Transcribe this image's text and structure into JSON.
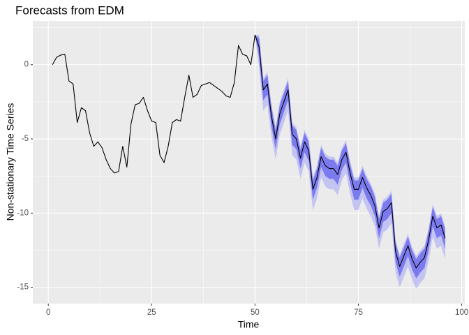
{
  "chart_data": {
    "type": "line",
    "title": "Forecasts from EDM",
    "xlabel": "Time",
    "ylabel": "Non-stationary Time Series",
    "x": [
      1,
      2,
      3,
      4,
      5,
      6,
      7,
      8,
      9,
      10,
      11,
      12,
      13,
      14,
      15,
      16,
      17,
      18,
      19,
      20,
      21,
      22,
      23,
      24,
      25,
      26,
      27,
      28,
      29,
      30,
      31,
      32,
      33,
      34,
      35,
      36,
      37,
      38,
      39,
      40,
      41,
      42,
      43,
      44,
      45,
      46,
      47,
      48,
      49,
      50,
      51,
      52,
      53,
      54,
      55,
      56,
      57,
      58,
      59,
      60,
      61,
      62,
      63,
      64,
      65,
      66,
      67,
      68,
      69,
      70,
      71,
      72,
      73,
      74,
      75,
      76,
      77,
      78,
      79,
      80,
      81,
      82,
      83,
      84,
      85,
      86,
      87,
      88,
      89,
      90,
      91,
      92,
      93,
      94,
      95,
      96
    ],
    "values": [
      0,
      0.5,
      0.65,
      0.7,
      -1.1,
      -1.3,
      -3.9,
      -2.9,
      -3.1,
      -4.6,
      -5.5,
      -5.2,
      -5.6,
      -6.4,
      -7.0,
      -7.3,
      -7.2,
      -5.5,
      -6.9,
      -4.0,
      -2.7,
      -2.6,
      -2.2,
      -3.1,
      -3.8,
      -3.9,
      -6.1,
      -6.6,
      -5.5,
      -3.9,
      -3.7,
      -3.8,
      -2.2,
      -0.7,
      -2.2,
      -2.0,
      -1.4,
      -1.3,
      -1.2,
      -1.4,
      -1.6,
      -1.8,
      -2.1,
      -2.2,
      -1.2,
      1.3,
      0.7,
      0.6,
      0.0,
      2.0,
      1.2,
      -1.7,
      -1.3,
      -3.5,
      -5.0,
      -3.3,
      -2.5,
      -1.7,
      -4.7,
      -5.0,
      -6.3,
      -5.2,
      -5.8,
      -8.4,
      -7.6,
      -6.2,
      -6.8,
      -7.0,
      -7.0,
      -7.4,
      -6.4,
      -5.9,
      -7.3,
      -8.4,
      -8.4,
      -7.6,
      -8.3,
      -8.8,
      -9.5,
      -11.0,
      -9.9,
      -9.7,
      -9.3,
      -12.6,
      -13.6,
      -12.9,
      -12.2,
      -13.1,
      -13.7,
      -13.3,
      -13.0,
      -11.8,
      -10.2,
      -11.0,
      -10.8,
      -11.7
    ],
    "color": "#000000",
    "interval_x": [
      50,
      51,
      52,
      53,
      54,
      55,
      56,
      57,
      58,
      59,
      60,
      61,
      62,
      63,
      64,
      65,
      66,
      67,
      68,
      69,
      70,
      71,
      72,
      73,
      74,
      75,
      76,
      77,
      78,
      79,
      80,
      81,
      82,
      83,
      84,
      85,
      86,
      87,
      88,
      89,
      90,
      91,
      92,
      93,
      94,
      95,
      96
    ],
    "intervals": [
      {
        "color": "#c4c4f2",
        "upper": [
          2.0,
          2.0,
          -0.9,
          -0.5,
          -2.7,
          -4.2,
          -2.5,
          -1.7,
          -0.9,
          -3.9,
          -4.2,
          -5.5,
          -4.4,
          -5.0,
          -7.6,
          -6.8,
          -5.4,
          -6.0,
          -6.2,
          -6.2,
          -6.6,
          -5.6,
          -5.1,
          -6.5,
          -7.6,
          -7.6,
          -6.8,
          -7.5,
          -8.0,
          -8.7,
          -10.2,
          -9.1,
          -8.9,
          -8.5,
          -11.8,
          -12.8,
          -12.1,
          -11.4,
          -12.3,
          -12.9,
          -12.5,
          -12.2,
          -11.0,
          -9.4,
          -10.2,
          -10.0,
          -10.9
        ],
        "lower": [
          2.0,
          -0.2,
          -3.1,
          -2.7,
          -4.9,
          -6.4,
          -4.7,
          -3.9,
          -3.1,
          -6.1,
          -6.4,
          -7.7,
          -6.6,
          -7.2,
          -9.8,
          -9.0,
          -7.6,
          -8.2,
          -8.4,
          -8.4,
          -8.8,
          -7.8,
          -7.3,
          -8.7,
          -9.8,
          -9.8,
          -9.0,
          -9.7,
          -10.2,
          -10.9,
          -12.4,
          -11.3,
          -11.1,
          -10.7,
          -14.0,
          -15.0,
          -14.3,
          -13.6,
          -14.5,
          -15.1,
          -14.7,
          -14.4,
          -13.2,
          -11.6,
          -12.4,
          -12.2,
          -13.1
        ]
      },
      {
        "color": "#7b7bef",
        "upper": [
          2.0,
          1.8,
          -1.1,
          -0.7,
          -2.9,
          -4.4,
          -2.7,
          -1.9,
          -1.1,
          -4.1,
          -4.4,
          -5.7,
          -4.6,
          -5.2,
          -7.8,
          -7.0,
          -5.6,
          -6.2,
          -6.4,
          -6.4,
          -6.8,
          -5.8,
          -5.3,
          -6.7,
          -7.8,
          -7.8,
          -7.0,
          -7.7,
          -8.2,
          -8.9,
          -10.4,
          -9.3,
          -9.1,
          -8.7,
          -12.0,
          -13.0,
          -12.3,
          -11.6,
          -12.5,
          -13.1,
          -12.7,
          -12.4,
          -11.2,
          -9.6,
          -10.4,
          -10.2,
          -11.1
        ],
        "lower": [
          2.0,
          0.5,
          -2.4,
          -2.0,
          -4.2,
          -5.7,
          -4.0,
          -3.2,
          -2.4,
          -5.4,
          -5.7,
          -7.0,
          -5.9,
          -6.5,
          -9.1,
          -8.3,
          -6.9,
          -7.5,
          -7.7,
          -7.7,
          -8.1,
          -7.1,
          -6.6,
          -8.0,
          -9.1,
          -9.1,
          -8.3,
          -9.0,
          -9.5,
          -10.2,
          -11.7,
          -10.6,
          -10.4,
          -10.0,
          -13.3,
          -14.3,
          -13.6,
          -12.9,
          -13.8,
          -14.4,
          -14.0,
          -13.7,
          -12.5,
          -10.9,
          -11.7,
          -11.5,
          -12.4
        ]
      }
    ],
    "xlim": [
      -3.75,
      100.75
    ],
    "ylim": [
      -16.1,
      2.95
    ],
    "xticks": [
      0,
      25,
      50,
      75,
      100
    ],
    "yticks": [
      0,
      -5,
      -10,
      -15
    ],
    "xminor": [
      12.5,
      37.5,
      62.5,
      87.5
    ],
    "yminor": [
      2.5,
      -2.5,
      -7.5,
      -12.5
    ],
    "grid": true
  }
}
